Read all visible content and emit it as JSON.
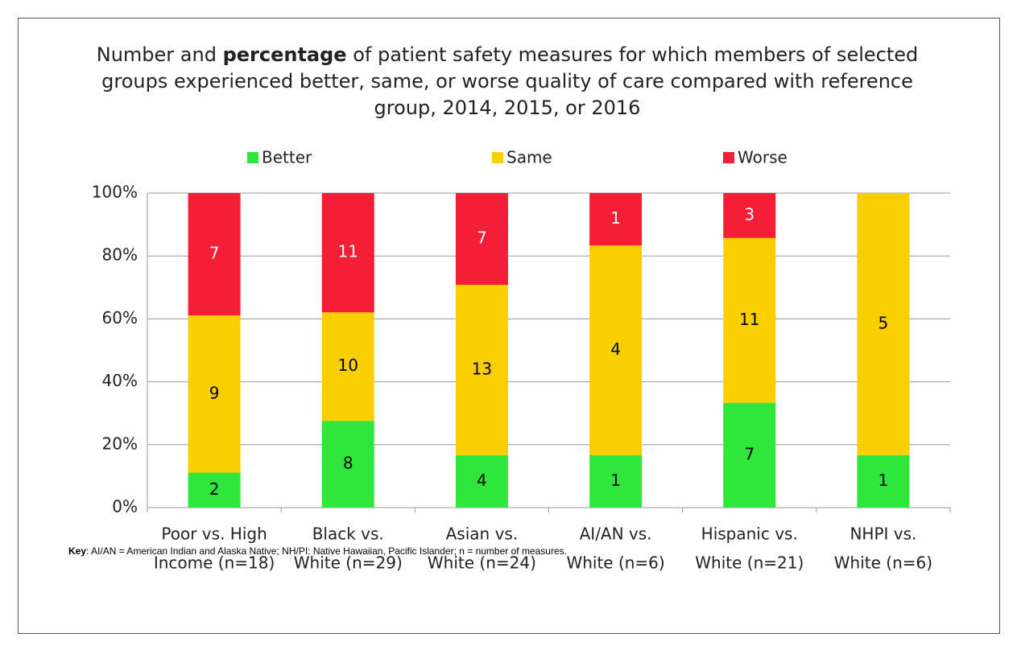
{
  "chart_data": {
    "type": "bar",
    "stacked": "percent",
    "title": [
      "Number and ",
      "percentage",
      " of patient safety measures for which members of selected groups experienced better, same, or worse quality of care compared with reference group, 2014, 2015, or 2016"
    ],
    "categories": [
      [
        "Poor vs. High",
        "Income (n=18)"
      ],
      [
        "Black vs.",
        "White (n=29)"
      ],
      [
        "Asian vs.",
        "White (n=24)"
      ],
      [
        "AI/AN vs.",
        "White (n=6)"
      ],
      [
        "Hispanic vs.",
        "White (n=21)"
      ],
      [
        "NHPI vs.",
        "White (n=6)"
      ]
    ],
    "series": [
      {
        "name": "Better",
        "color": "#2ee63c",
        "label_color": "#000000",
        "values": [
          2,
          8,
          4,
          1,
          7,
          1
        ]
      },
      {
        "name": "Same",
        "color": "#f9cf00",
        "label_color": "#000000",
        "values": [
          9,
          10,
          13,
          4,
          11,
          5
        ]
      },
      {
        "name": "Worse",
        "color": "#f41e36",
        "label_color": "#ffffff",
        "values": [
          7,
          11,
          7,
          1,
          3,
          0
        ]
      }
    ],
    "ylim": [
      0,
      100
    ],
    "yticks": [
      {
        "value": 0,
        "label": "0%"
      },
      {
        "value": 20,
        "label": "20%"
      },
      {
        "value": 40,
        "label": "40%"
      },
      {
        "value": 60,
        "label": "60%"
      },
      {
        "value": 80,
        "label": "80%"
      },
      {
        "value": 100,
        "label": "100%"
      }
    ],
    "grid": true,
    "legend": "top",
    "note": [
      "Key",
      ": AI/AN = American Indian and Alaska Native; NH/PI: Native Hawaiian, Pacific Islander; n = number of measures."
    ]
  }
}
